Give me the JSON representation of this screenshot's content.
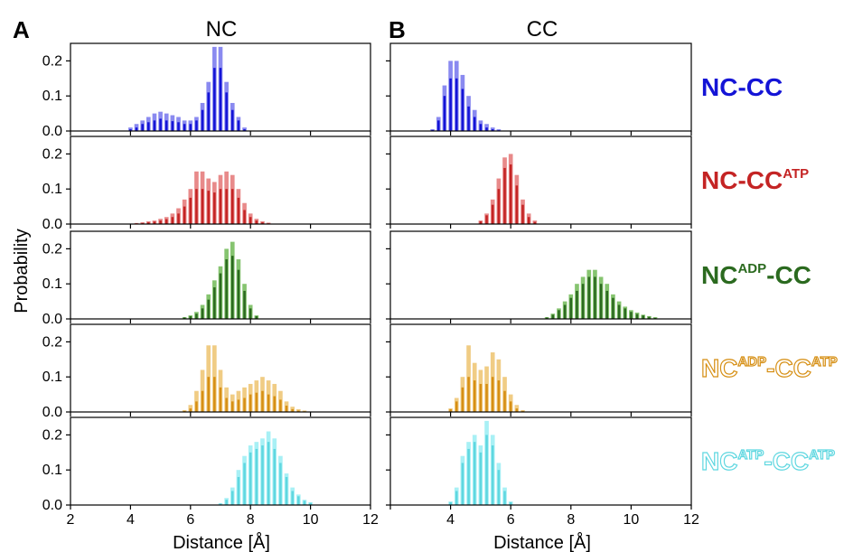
{
  "panels": [
    {
      "letter": "A",
      "title": "NC"
    },
    {
      "letter": "B",
      "title": "CC"
    }
  ],
  "y_axis_label": "Probability",
  "x_axis_label": "Distance [Å]",
  "chart_data": {
    "type": "bar",
    "xlabel": "Distance [Å]",
    "ylabel": "Probability",
    "xlim": [
      2,
      12
    ],
    "ylim": [
      0,
      0.25
    ],
    "xticks": [
      2,
      4,
      6,
      8,
      10,
      12
    ],
    "yticks": [
      0.0,
      0.1,
      0.2
    ],
    "bin_width": 0.2,
    "rows": [
      {
        "label": {
          "parts": [
            [
              "NC-CC",
              ""
            ]
          ]
        },
        "color_dark": "#1414d6",
        "color_light": "#8a8af0",
        "NC": {
          "x_start": 4.0,
          "light": [
            0.01,
            0.02,
            0.03,
            0.04,
            0.05,
            0.055,
            0.05,
            0.045,
            0.04,
            0.03,
            0.03,
            0.04,
            0.08,
            0.14,
            0.24,
            0.24,
            0.14,
            0.08,
            0.04,
            0.01
          ],
          "dark": [
            0.005,
            0.01,
            0.02,
            0.025,
            0.03,
            0.035,
            0.03,
            0.028,
            0.025,
            0.02,
            0.02,
            0.03,
            0.06,
            0.11,
            0.18,
            0.18,
            0.11,
            0.06,
            0.03,
            0.005
          ]
        },
        "CC": {
          "x_start": 3.4,
          "light": [
            0.005,
            0.04,
            0.13,
            0.2,
            0.2,
            0.16,
            0.1,
            0.06,
            0.03,
            0.02,
            0.01,
            0.005
          ],
          "dark": [
            0.003,
            0.03,
            0.1,
            0.15,
            0.15,
            0.12,
            0.07,
            0.04,
            0.02,
            0.01,
            0.005,
            0.002
          ]
        }
      },
      {
        "label": {
          "parts": [
            [
              "NC-CC",
              ""
            ],
            [
              "ATP",
              "sup"
            ]
          ]
        },
        "color_dark": "#c42424",
        "color_light": "#e88a8a",
        "NC": {
          "x_start": 4.2,
          "light": [
            0.003,
            0.005,
            0.008,
            0.01,
            0.015,
            0.02,
            0.03,
            0.045,
            0.07,
            0.1,
            0.15,
            0.15,
            0.13,
            0.12,
            0.14,
            0.15,
            0.14,
            0.1,
            0.06,
            0.03,
            0.015,
            0.008,
            0.004
          ],
          "dark": [
            0.002,
            0.003,
            0.005,
            0.007,
            0.01,
            0.014,
            0.02,
            0.03,
            0.05,
            0.075,
            0.1,
            0.1,
            0.095,
            0.09,
            0.1,
            0.1,
            0.1,
            0.075,
            0.04,
            0.02,
            0.01,
            0.005,
            0.002
          ]
        },
        "CC": {
          "x_start": 5.0,
          "light": [
            0.01,
            0.03,
            0.07,
            0.13,
            0.19,
            0.2,
            0.14,
            0.07,
            0.03,
            0.01
          ],
          "dark": [
            0.008,
            0.025,
            0.055,
            0.1,
            0.16,
            0.17,
            0.11,
            0.055,
            0.02,
            0.006
          ]
        }
      },
      {
        "label": {
          "parts": [
            [
              "NC",
              ""
            ],
            [
              "ADP",
              "sup"
            ],
            [
              "-CC",
              ""
            ]
          ]
        },
        "color_dark": "#2b6a1f",
        "color_light": "#86c470",
        "NC": {
          "x_start": 5.8,
          "light": [
            0.005,
            0.01,
            0.02,
            0.04,
            0.07,
            0.11,
            0.15,
            0.2,
            0.22,
            0.17,
            0.1,
            0.04,
            0.01
          ],
          "dark": [
            0.004,
            0.008,
            0.015,
            0.03,
            0.055,
            0.09,
            0.13,
            0.17,
            0.18,
            0.14,
            0.08,
            0.03,
            0.008
          ]
        },
        "CC": {
          "x_start": 7.2,
          "light": [
            0.005,
            0.015,
            0.03,
            0.05,
            0.07,
            0.1,
            0.12,
            0.14,
            0.14,
            0.12,
            0.1,
            0.07,
            0.05,
            0.035,
            0.025,
            0.018,
            0.012,
            0.008,
            0.005
          ],
          "dark": [
            0.004,
            0.012,
            0.025,
            0.04,
            0.06,
            0.08,
            0.1,
            0.12,
            0.12,
            0.1,
            0.08,
            0.06,
            0.04,
            0.03,
            0.02,
            0.014,
            0.01,
            0.006,
            0.003
          ]
        }
      },
      {
        "label": {
          "parts": [
            [
              "NC",
              ""
            ],
            [
              "ADP",
              "sup"
            ],
            [
              "-CC",
              ""
            ],
            [
              "ATP",
              "sup"
            ]
          ]
        },
        "color_dark": "#d68f14",
        "color_light": "#f0cc84",
        "NC": {
          "x_start": 5.8,
          "light": [
            0.005,
            0.02,
            0.06,
            0.12,
            0.19,
            0.19,
            0.12,
            0.07,
            0.05,
            0.06,
            0.07,
            0.08,
            0.09,
            0.1,
            0.09,
            0.08,
            0.06,
            0.03,
            0.015,
            0.008,
            0.004
          ],
          "dark": [
            0.003,
            0.01,
            0.03,
            0.06,
            0.1,
            0.1,
            0.07,
            0.04,
            0.03,
            0.035,
            0.04,
            0.05,
            0.055,
            0.06,
            0.05,
            0.045,
            0.035,
            0.018,
            0.008,
            0.004,
            0.002
          ]
        },
        "CC": {
          "x_start": 4.0,
          "light": [
            0.01,
            0.04,
            0.1,
            0.19,
            0.14,
            0.12,
            0.13,
            0.17,
            0.15,
            0.1,
            0.05,
            0.02,
            0.005
          ],
          "dark": [
            0.008,
            0.03,
            0.07,
            0.1,
            0.09,
            0.08,
            0.08,
            0.1,
            0.09,
            0.06,
            0.03,
            0.01,
            0.003
          ]
        }
      },
      {
        "label": {
          "parts": [
            [
              "NC",
              ""
            ],
            [
              "ATP",
              "sup"
            ],
            [
              "-CC",
              ""
            ],
            [
              "ATP",
              "sup"
            ]
          ]
        },
        "color_dark": "#5fd7e0",
        "color_light": "#a8f0f5",
        "NC": {
          "x_start": 7.0,
          "light": [
            0.005,
            0.02,
            0.05,
            0.1,
            0.14,
            0.17,
            0.18,
            0.19,
            0.21,
            0.19,
            0.14,
            0.09,
            0.05,
            0.03,
            0.015,
            0.008
          ],
          "dark": [
            0.004,
            0.015,
            0.04,
            0.08,
            0.12,
            0.15,
            0.16,
            0.17,
            0.18,
            0.16,
            0.12,
            0.08,
            0.04,
            0.025,
            0.012,
            0.006
          ]
        },
        "CC": {
          "x_start": 4.0,
          "light": [
            0.01,
            0.05,
            0.14,
            0.18,
            0.2,
            0.17,
            0.24,
            0.2,
            0.12,
            0.05,
            0.01
          ],
          "dark": [
            0.008,
            0.04,
            0.12,
            0.16,
            0.18,
            0.15,
            0.2,
            0.17,
            0.1,
            0.04,
            0.008
          ]
        }
      }
    ]
  }
}
